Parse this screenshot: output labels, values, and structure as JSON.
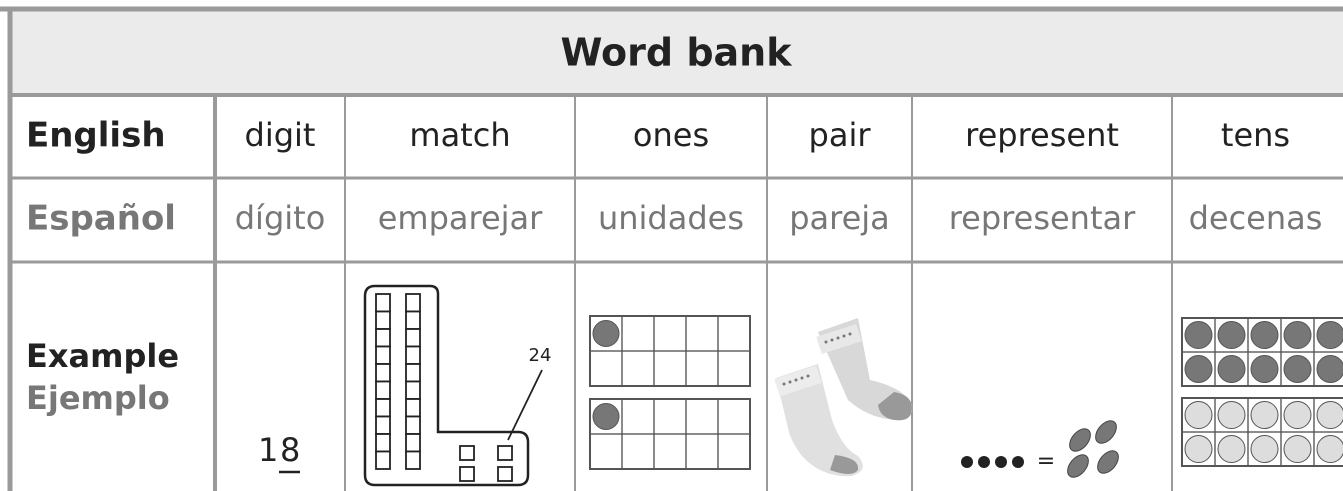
{
  "title": "Word bank",
  "table": {
    "row_labels": {
      "english": "English",
      "spanish": "Español",
      "example": "Example",
      "ejemplo": "Ejemplo"
    },
    "english": [
      "digit",
      "match",
      "ones",
      "pair",
      "represent",
      "tens"
    ],
    "spanish": [
      "dígito",
      "emparejar",
      "unidades",
      "pareja",
      "representar",
      "decenas"
    ],
    "examples": {
      "digit_tens": "1",
      "digit_ones": "8",
      "match_label": "24",
      "represent_equals": "="
    }
  }
}
